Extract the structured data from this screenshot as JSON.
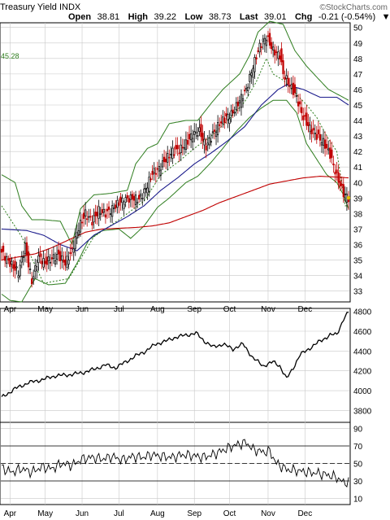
{
  "header": {
    "title": "Treasury Yield INDX",
    "watermark": "©StockCharts.com",
    "open_label": "Open",
    "open": "38.81",
    "high_label": "High",
    "high": "39.22",
    "low_label": "Low",
    "low": "38.73",
    "last_label": "Last",
    "last": "39.01",
    "chg_label": "Chg",
    "chg": "-0.21 (-0.54%)",
    "chg_arrow": "▼"
  },
  "side_label": "45.28",
  "colors": {
    "up": "#000000",
    "down": "#c00000",
    "dark_up": "#000000",
    "bollinger": "#2e7d1e",
    "ma_short": "#1c1c8c",
    "ma_long": "#c00000",
    "psar": "#2e7d1e",
    "grid": "#c8c8c8",
    "last_marker": "#e0c000"
  },
  "chart_data": [
    {
      "type": "candlestick",
      "title": "Treasury Yield INDX",
      "x_months": [
        "Apr",
        "May",
        "Jun",
        "Jul",
        "Aug",
        "Sep",
        "Oct",
        "Nov",
        "Dec"
      ],
      "yticks": [
        33,
        34,
        35,
        36,
        37,
        38,
        39,
        40,
        41,
        42,
        43,
        44,
        45,
        46,
        47,
        48,
        49,
        50
      ],
      "ylim": [
        32.3,
        50.3
      ],
      "grid": true,
      "close_keypoints": [
        [
          0,
          35.5
        ],
        [
          5,
          34.8
        ],
        [
          10,
          34.2
        ],
        [
          14,
          35.9
        ],
        [
          18,
          33.6
        ],
        [
          22,
          35.2
        ],
        [
          26,
          34.8
        ],
        [
          30,
          35.1
        ],
        [
          34,
          35.3
        ],
        [
          38,
          34.8
        ],
        [
          42,
          35.6
        ],
        [
          46,
          37.1
        ],
        [
          50,
          38.0
        ],
        [
          54,
          37.5
        ],
        [
          58,
          38.2
        ],
        [
          62,
          38.0
        ],
        [
          66,
          38.3
        ],
        [
          70,
          38.7
        ],
        [
          74,
          38.9
        ],
        [
          78,
          39.0
        ],
        [
          82,
          38.9
        ],
        [
          86,
          39.6
        ],
        [
          90,
          40.6
        ],
        [
          94,
          40.9
        ],
        [
          98,
          41.5
        ],
        [
          102,
          42.0
        ],
        [
          106,
          42.1
        ],
        [
          110,
          42.5
        ],
        [
          114,
          43.1
        ],
        [
          118,
          43.3
        ],
        [
          122,
          42.3
        ],
        [
          126,
          43.1
        ],
        [
          130,
          43.8
        ],
        [
          134,
          44.2
        ],
        [
          138,
          44.5
        ],
        [
          142,
          45.3
        ],
        [
          146,
          46.0
        ],
        [
          150,
          47.5
        ],
        [
          154,
          48.8
        ],
        [
          158,
          49.4
        ],
        [
          162,
          48.5
        ],
        [
          166,
          48.2
        ],
        [
          168,
          47.0
        ],
        [
          172,
          46.3
        ],
        [
          176,
          45.5
        ],
        [
          180,
          44.2
        ],
        [
          184,
          43.5
        ],
        [
          188,
          43.0
        ],
        [
          192,
          42.6
        ],
        [
          196,
          41.8
        ],
        [
          200,
          40.4
        ],
        [
          204,
          39.3
        ],
        [
          207,
          39.01
        ]
      ],
      "sma_short_keypoints": [
        [
          0,
          37.0
        ],
        [
          15,
          36.9
        ],
        [
          25,
          36.6
        ],
        [
          35,
          36.0
        ],
        [
          45,
          35.6
        ],
        [
          55,
          36.6
        ],
        [
          65,
          37.2
        ],
        [
          75,
          37.8
        ],
        [
          85,
          38.5
        ],
        [
          95,
          39.5
        ],
        [
          105,
          40.3
        ],
        [
          115,
          41.2
        ],
        [
          125,
          41.9
        ],
        [
          135,
          42.7
        ],
        [
          145,
          43.6
        ],
        [
          155,
          45.0
        ],
        [
          165,
          46.0
        ],
        [
          170,
          46.3
        ],
        [
          180,
          46.0
        ],
        [
          190,
          45.5
        ],
        [
          200,
          45.5
        ],
        [
          207,
          45.0
        ]
      ],
      "sma_long_keypoints": [
        [
          0,
          35.0
        ],
        [
          10,
          35.2
        ],
        [
          20,
          35.4
        ],
        [
          30,
          35.8
        ],
        [
          40,
          36.3
        ],
        [
          50,
          36.8
        ],
        [
          60,
          37.0
        ],
        [
          70,
          37.05
        ],
        [
          80,
          37.1
        ],
        [
          90,
          37.2
        ],
        [
          100,
          37.4
        ],
        [
          110,
          37.8
        ],
        [
          120,
          38.2
        ],
        [
          130,
          38.7
        ],
        [
          140,
          39.1
        ],
        [
          150,
          39.5
        ],
        [
          160,
          39.9
        ],
        [
          170,
          40.1
        ],
        [
          180,
          40.3
        ],
        [
          190,
          40.4
        ],
        [
          200,
          40.35
        ],
        [
          207,
          40.3
        ]
      ],
      "bollinger_upper_keypoints": [
        [
          0,
          40.5
        ],
        [
          8,
          40.0
        ],
        [
          12,
          38.5
        ],
        [
          18,
          37.6
        ],
        [
          25,
          37.6
        ],
        [
          35,
          37.5
        ],
        [
          42,
          36.0
        ],
        [
          47,
          38.3
        ],
        [
          55,
          39.2
        ],
        [
          65,
          39.3
        ],
        [
          75,
          39.5
        ],
        [
          80,
          41.2
        ],
        [
          87,
          42.2
        ],
        [
          93,
          42.5
        ],
        [
          100,
          43.8
        ],
        [
          110,
          44.0
        ],
        [
          117,
          44.0
        ],
        [
          125,
          45.1
        ],
        [
          132,
          46.0
        ],
        [
          142,
          47.0
        ],
        [
          148,
          48.2
        ],
        [
          153,
          49.7
        ],
        [
          160,
          50.4
        ],
        [
          168,
          50.2
        ],
        [
          175,
          48.5
        ],
        [
          182,
          47.5
        ],
        [
          188,
          46.8
        ],
        [
          195,
          46.0
        ],
        [
          202,
          45.6
        ],
        [
          207,
          45.3
        ]
      ],
      "bollinger_lower_keypoints": [
        [
          0,
          32.8
        ],
        [
          5,
          32.4
        ],
        [
          12,
          32.3
        ],
        [
          20,
          33.8
        ],
        [
          28,
          33.4
        ],
        [
          38,
          33.5
        ],
        [
          45,
          34.8
        ],
        [
          52,
          36.3
        ],
        [
          60,
          36.9
        ],
        [
          70,
          37.0
        ],
        [
          77,
          36.4
        ],
        [
          85,
          37.2
        ],
        [
          93,
          38.4
        ],
        [
          100,
          39.0
        ],
        [
          110,
          40.0
        ],
        [
          117,
          40.4
        ],
        [
          125,
          41.3
        ],
        [
          132,
          42.2
        ],
        [
          140,
          43.3
        ],
        [
          148,
          44.2
        ],
        [
          155,
          44.8
        ],
        [
          162,
          45.3
        ],
        [
          170,
          45.3
        ],
        [
          176,
          44.5
        ],
        [
          182,
          42.5
        ],
        [
          188,
          41.5
        ],
        [
          194,
          40.5
        ],
        [
          200,
          40.0
        ],
        [
          204,
          39.2
        ],
        [
          207,
          38.3
        ]
      ],
      "psar_keypoints": [
        [
          0,
          38.5
        ],
        [
          12,
          36.5
        ],
        [
          25,
          33.5
        ],
        [
          40,
          33.8
        ],
        [
          55,
          36.5
        ],
        [
          70,
          37.6
        ],
        [
          85,
          38.8
        ],
        [
          95,
          40.5
        ],
        [
          105,
          41.3
        ],
        [
          115,
          42.2
        ],
        [
          125,
          43.0
        ],
        [
          135,
          44.0
        ],
        [
          145,
          45.2
        ],
        [
          152,
          46.5
        ],
        [
          158,
          48.0
        ],
        [
          162,
          47.0
        ],
        [
          168,
          46.6
        ],
        [
          175,
          45.8
        ],
        [
          182,
          45.0
        ],
        [
          188,
          44.2
        ],
        [
          194,
          43.0
        ],
        [
          200,
          42.0
        ],
        [
          205,
          38.5
        ]
      ],
      "last": 39.01
    },
    {
      "type": "line",
      "series_label": "",
      "yticks": [
        3800,
        4000,
        4200,
        4400,
        4600,
        4800
      ],
      "ylim": [
        3680,
        4830
      ],
      "grid": true,
      "keypoints": [
        [
          0,
          3930
        ],
        [
          8,
          4020
        ],
        [
          16,
          4080
        ],
        [
          24,
          4110
        ],
        [
          32,
          4150
        ],
        [
          40,
          4160
        ],
        [
          48,
          4180
        ],
        [
          56,
          4220
        ],
        [
          62,
          4260
        ],
        [
          68,
          4230
        ],
        [
          74,
          4290
        ],
        [
          80,
          4350
        ],
        [
          86,
          4400
        ],
        [
          92,
          4470
        ],
        [
          98,
          4500
        ],
        [
          104,
          4540
        ],
        [
          110,
          4560
        ],
        [
          116,
          4580
        ],
        [
          121,
          4500
        ],
        [
          126,
          4440
        ],
        [
          132,
          4470
        ],
        [
          138,
          4420
        ],
        [
          144,
          4470
        ],
        [
          150,
          4330
        ],
        [
          156,
          4250
        ],
        [
          162,
          4290
        ],
        [
          166,
          4250
        ],
        [
          170,
          4120
        ],
        [
          174,
          4230
        ],
        [
          178,
          4360
        ],
        [
          184,
          4430
        ],
        [
          190,
          4500
        ],
        [
          196,
          4560
        ],
        [
          200,
          4570
        ],
        [
          204,
          4720
        ],
        [
          207,
          4790
        ]
      ]
    },
    {
      "type": "line",
      "series_label": "",
      "yticks": [
        10,
        30,
        50,
        70,
        90
      ],
      "ylim": [
        3,
        97
      ],
      "hlines": [
        30,
        50,
        70
      ],
      "keypoints": [
        [
          0,
          45
        ],
        [
          6,
          40
        ],
        [
          12,
          44
        ],
        [
          18,
          40
        ],
        [
          24,
          46
        ],
        [
          30,
          44
        ],
        [
          36,
          50
        ],
        [
          42,
          48
        ],
        [
          48,
          55
        ],
        [
          54,
          57
        ],
        [
          60,
          55
        ],
        [
          66,
          58
        ],
        [
          72,
          54
        ],
        [
          78,
          58
        ],
        [
          84,
          57
        ],
        [
          90,
          60
        ],
        [
          96,
          58
        ],
        [
          102,
          57
        ],
        [
          108,
          60
        ],
        [
          114,
          59
        ],
        [
          120,
          57
        ],
        [
          126,
          60
        ],
        [
          132,
          65
        ],
        [
          138,
          70
        ],
        [
          142,
          72
        ],
        [
          146,
          74
        ],
        [
          150,
          66
        ],
        [
          156,
          63
        ],
        [
          160,
          64
        ],
        [
          164,
          50
        ],
        [
          170,
          43
        ],
        [
          176,
          42
        ],
        [
          182,
          40
        ],
        [
          188,
          39
        ],
        [
          194,
          37
        ],
        [
          200,
          34
        ],
        [
          204,
          28
        ],
        [
          207,
          29
        ]
      ]
    }
  ]
}
